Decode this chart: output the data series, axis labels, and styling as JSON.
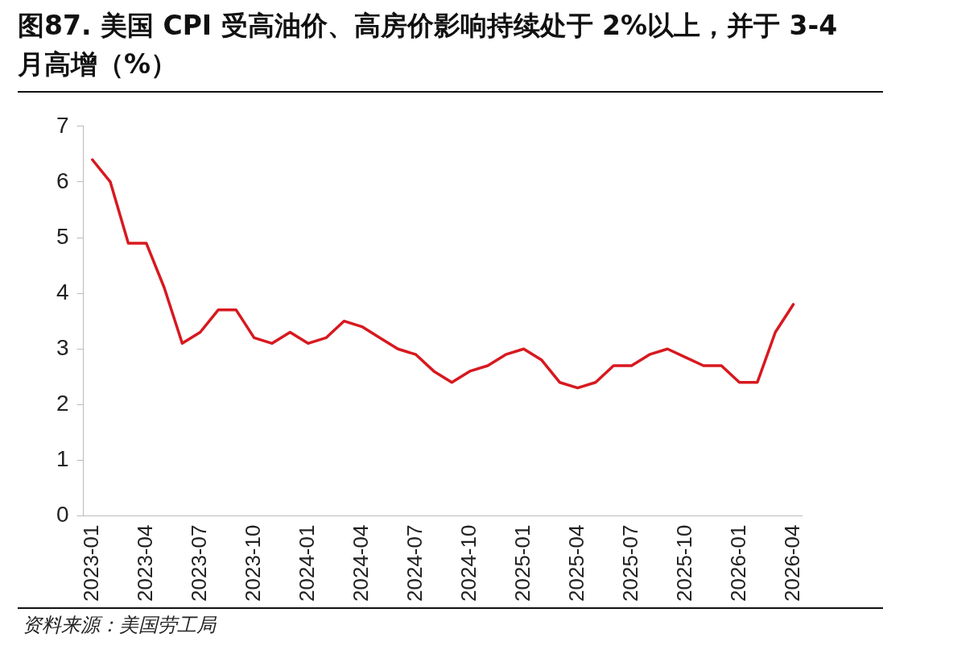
{
  "chart_data": {
    "type": "line",
    "title": "图87. 美国 CPI 受高油价、高房价影响持续处于 2%以上，并于 3-4 月高增（%）",
    "categories": [
      "2023-01",
      null,
      null,
      "2023-04",
      null,
      null,
      "2023-07",
      null,
      null,
      "2023-10",
      null,
      null,
      "2024-01",
      null,
      null,
      "2024-04",
      null,
      null,
      "2024-07",
      null,
      null,
      "2024-10",
      null,
      null,
      "2025-01",
      null,
      null,
      "2025-04",
      null,
      null,
      "2025-07",
      null,
      null,
      "2025-10",
      null,
      null,
      "2026-01",
      null,
      null,
      "2026-04"
    ],
    "series": [
      {
        "color": "#d7191f",
        "values": [
          6.4,
          6.0,
          4.9,
          4.9,
          4.1,
          3.1,
          3.3,
          3.7,
          3.7,
          3.2,
          3.1,
          3.3,
          3.1,
          3.2,
          3.5,
          3.4,
          3.2,
          3.0,
          2.9,
          2.6,
          2.4,
          2.6,
          2.7,
          2.9,
          3.0,
          2.8,
          2.4,
          2.3,
          2.4,
          2.7,
          2.7,
          2.9,
          3.0,
          2.85,
          2.7,
          2.7,
          2.4,
          2.4,
          3.3,
          3.8
        ]
      }
    ],
    "ylim": [
      0,
      7
    ],
    "yticks": [
      0,
      1,
      2,
      3,
      4,
      5,
      6,
      7
    ],
    "grid": false,
    "legend": false,
    "marker": "none",
    "line_style": "solid",
    "annotations": [
      "资料来源：美国劳工局"
    ]
  }
}
